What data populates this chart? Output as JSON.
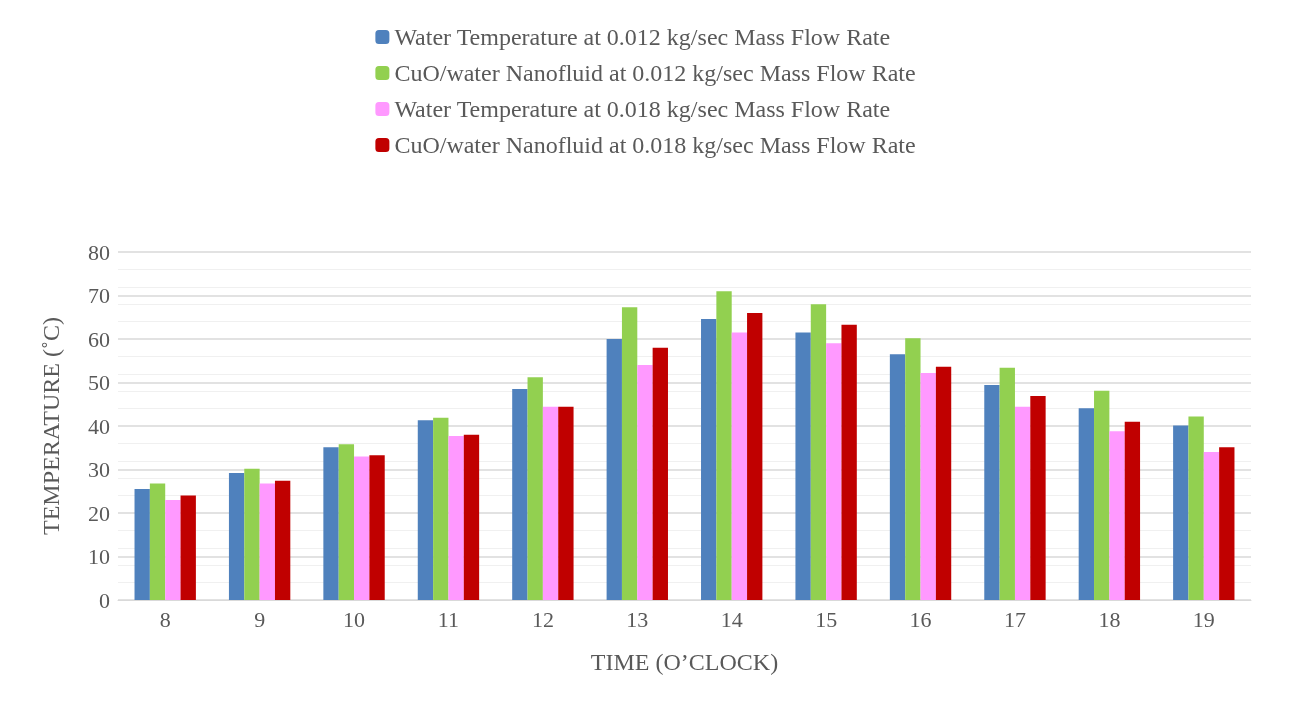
{
  "chart_data": {
    "type": "bar",
    "xlabel": "TIME (O’CLOCK)",
    "ylabel": "TEMPERATURE (˚C)",
    "categories": [
      "8",
      "9",
      "10",
      "11",
      "12",
      "13",
      "14",
      "15",
      "16",
      "17",
      "18",
      "19"
    ],
    "series": [
      {
        "name": "Water Temperature at 0.012 kg/sec Mass Flow Rate",
        "color": "#4f81bd",
        "values": [
          25.5,
          29.2,
          35.1,
          41.3,
          48.5,
          60,
          64.6,
          61.5,
          56.5,
          49.4,
          44.1,
          40.1
        ]
      },
      {
        "name": "CuO/water Nanofluid at 0.012 kg/sec Mass Flow Rate",
        "color": "#92d050",
        "values": [
          26.8,
          30.2,
          35.8,
          41.9,
          51.2,
          67.3,
          71,
          68,
          60.2,
          53.4,
          48.1,
          42.2
        ]
      },
      {
        "name": "Water Temperature at 0.018 kg/sec Mass Flow Rate",
        "color": "#ff99ff",
        "values": [
          23,
          26.8,
          33,
          37.7,
          44.4,
          54,
          61.5,
          59,
          52.2,
          44.4,
          38.8,
          34
        ]
      },
      {
        "name": "CuO/water Nanofluid at 0.018 kg/sec Mass Flow Rate",
        "color": "#c00000",
        "values": [
          24,
          27.4,
          33.3,
          38,
          44.4,
          58,
          66,
          63.3,
          53.6,
          46.9,
          41,
          35.1
        ]
      }
    ],
    "ylim": [
      0,
      80
    ],
    "yticks": [
      0,
      10,
      20,
      30,
      40,
      50,
      60,
      70,
      80
    ],
    "grid": "y",
    "legend": "top"
  }
}
